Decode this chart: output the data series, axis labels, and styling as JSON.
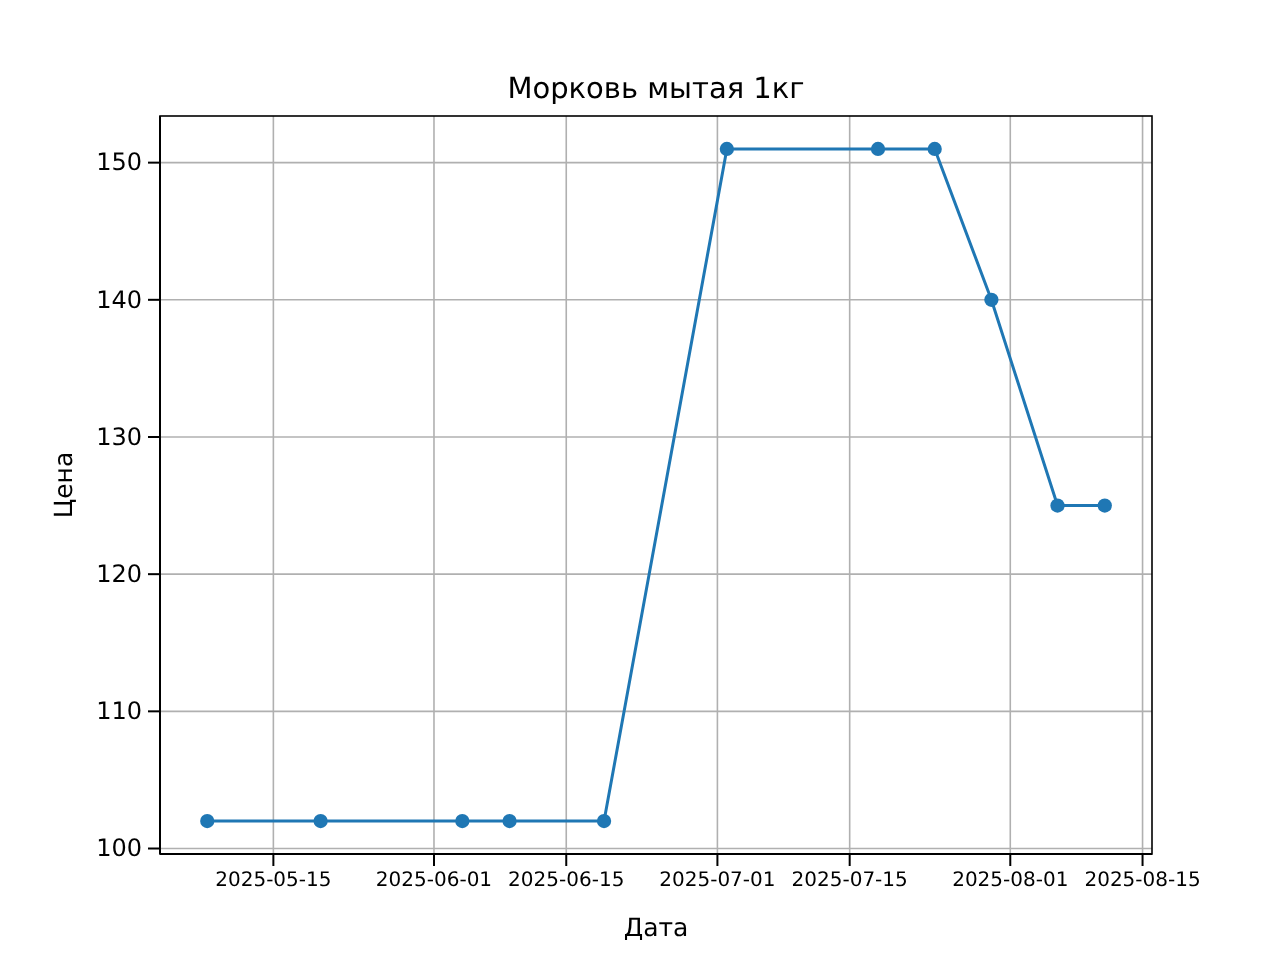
{
  "chart_data": {
    "type": "line",
    "title": "Морковь мытая 1кг",
    "xlabel": "Дата",
    "ylabel": "Цена",
    "x": [
      "2025-05-08",
      "2025-05-20",
      "2025-06-04",
      "2025-06-09",
      "2025-06-19",
      "2025-07-02",
      "2025-07-18",
      "2025-07-24",
      "2025-07-30",
      "2025-08-06",
      "2025-08-11"
    ],
    "series": [
      {
        "color": "#1f77b4",
        "values": [
          102,
          102,
          102,
          102,
          102,
          151,
          151,
          151,
          140,
          125,
          125
        ]
      }
    ],
    "xlim": [
      "2025-05-03",
      "2025-08-16"
    ],
    "xticks": [
      "2025-05-15",
      "2025-06-01",
      "2025-06-15",
      "2025-07-01",
      "2025-07-15",
      "2025-08-01",
      "2025-08-15"
    ],
    "ylim": [
      99.6,
      153.4
    ],
    "yticks": [
      100,
      110,
      120,
      130,
      140,
      150
    ],
    "grid": true,
    "marker": "circle",
    "line_style": "solid"
  }
}
